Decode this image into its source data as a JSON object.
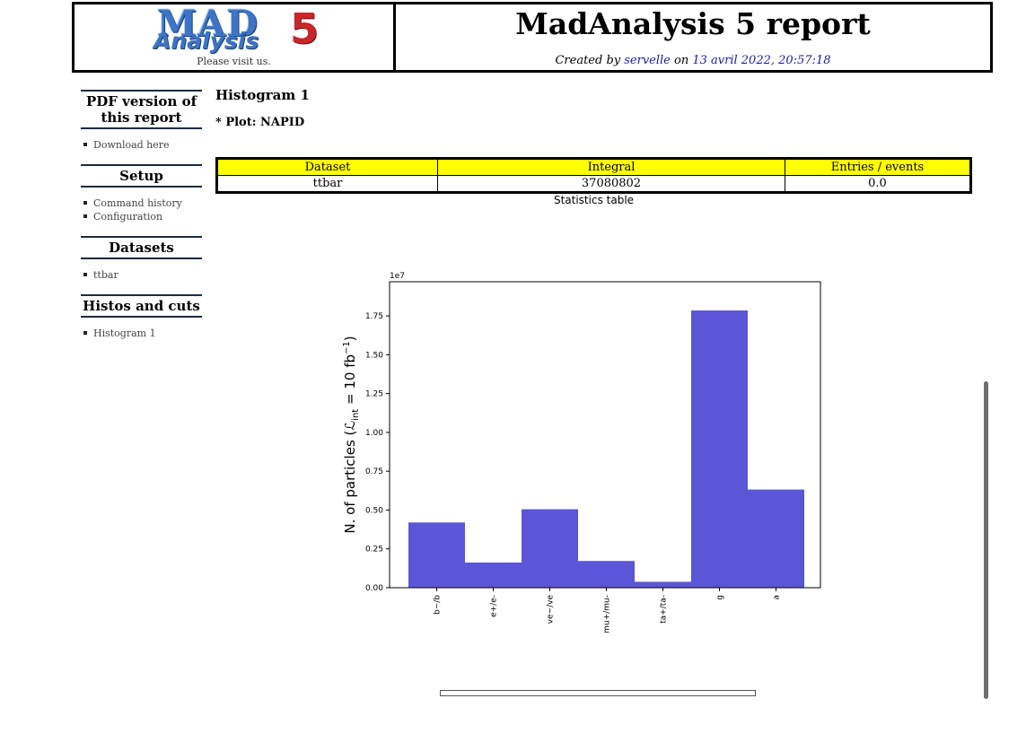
{
  "header": {
    "logo_mad": "MAD",
    "logo_analysis": "Analysis",
    "logo_five": "5",
    "visit": "Please visit us.",
    "title": "MadAnalysis 5 report",
    "created_prefix": "Created by ",
    "author": "servelle",
    "created_on": " on ",
    "date": "13 avril 2022, 20:57:18"
  },
  "sidebar": {
    "sections": [
      {
        "title": "PDF version of this report",
        "items": [
          "Download here"
        ]
      },
      {
        "title": "Setup",
        "items": [
          "Command history",
          "Configuration"
        ]
      },
      {
        "title": "Datasets",
        "items": [
          "ttbar"
        ]
      },
      {
        "title": "Histos and cuts",
        "items": [
          "Histogram 1"
        ]
      }
    ]
  },
  "main": {
    "histogram_title": "Histogram 1",
    "plot_label": "* Plot: NAPID",
    "stats_table": {
      "headers": [
        "Dataset",
        "Integral",
        "Entries / events"
      ],
      "rows": [
        [
          "ttbar",
          "37080802",
          "0.0"
        ]
      ],
      "caption": "Statistics table"
    }
  },
  "chart_data": {
    "type": "bar",
    "categories": [
      "b~/b",
      "e+/e-",
      "ve~/ve",
      "mu+/mu-",
      "ta+/ta-",
      "g",
      "a"
    ],
    "values": [
      4200000,
      1620000,
      5050000,
      1720000,
      380000,
      17850000,
      6320000
    ],
    "ylabel": "N. of particles (L_int = 10 fb^-1)",
    "ylabel_main": "N. of particles (",
    "ylabel_script": "ℒ",
    "ylabel_sub": "int",
    "ylabel_eq": " = 10 fb",
    "ylabel_sup": "−1",
    "ylabel_close": ")",
    "y_offset_label": "1e7",
    "ylim": [
      0,
      19700000
    ],
    "yticks": [
      0,
      2500000,
      5000000,
      7500000,
      10000000,
      12500000,
      15000000,
      17500000
    ],
    "ytick_labels": [
      "0.00",
      "0.25",
      "0.50",
      "0.75",
      "1.00",
      "1.25",
      "1.50",
      "1.75"
    ],
    "bar_color": "#5b55d8",
    "grid": false
  }
}
